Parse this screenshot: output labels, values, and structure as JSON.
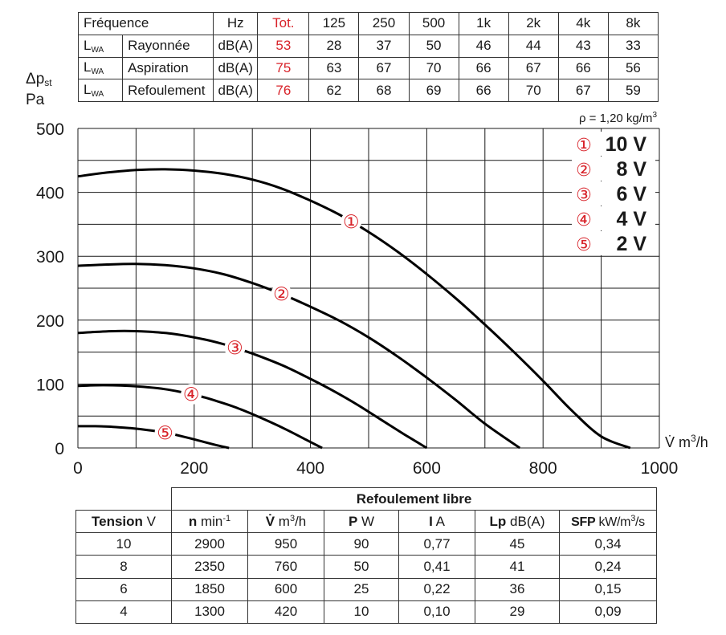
{
  "sound_table": {
    "header": {
      "freq": "Fréquence",
      "unit": "Hz",
      "tot": "Tot.",
      "bands": [
        "125",
        "250",
        "500",
        "1k",
        "2k",
        "4k",
        "8k"
      ]
    },
    "rows": [
      {
        "l": "L",
        "sub": "WA",
        "name": "Rayonnée",
        "unit": "dB(A)",
        "tot": "53",
        "values": [
          "28",
          "37",
          "50",
          "46",
          "44",
          "43",
          "33"
        ]
      },
      {
        "l": "L",
        "sub": "WA",
        "name": "Aspiration",
        "unit": "dB(A)",
        "tot": "75",
        "values": [
          "63",
          "67",
          "70",
          "66",
          "67",
          "66",
          "56"
        ]
      },
      {
        "l": "L",
        "sub": "WA",
        "name": "Refoulement",
        "unit": "dB(A)",
        "tot": "76",
        "values": [
          "62",
          "68",
          "69",
          "66",
          "70",
          "67",
          "59"
        ]
      }
    ]
  },
  "y_axis_label": {
    "symbol": "Δp",
    "sub": "st",
    "unit": "Pa"
  },
  "density_note": {
    "text": "ρ = 1,20 kg/m",
    "sup": "3"
  },
  "x_axis_unit": {
    "text": "V̇ m",
    "sup": "3",
    "suffix": "/h"
  },
  "colors": {
    "curve": "#000000",
    "label_red": "#d8232a",
    "grid": "#1a1a1a"
  },
  "chart_data": {
    "type": "line",
    "xlabel": "V̇ m³/h",
    "ylabel": "Δpst Pa",
    "xlim": [
      0,
      1000
    ],
    "ylim": [
      0,
      500
    ],
    "x_ticks": [
      0,
      200,
      400,
      600,
      800,
      1000
    ],
    "y_ticks": [
      0,
      100,
      200,
      300,
      400,
      500
    ],
    "x_grid_step": 100,
    "y_grid_step": 50,
    "grid": true,
    "legend_position": "top-right",
    "series": [
      {
        "marker": "①",
        "name": "10 V",
        "label_x": 470,
        "x": [
          0,
          50,
          100,
          150,
          200,
          250,
          300,
          350,
          400,
          450,
          500,
          550,
          600,
          650,
          700,
          750,
          800,
          850,
          900,
          950
        ],
        "y": [
          425,
          431,
          435,
          436,
          434,
          429,
          420,
          406,
          387,
          365,
          338,
          307,
          272,
          234,
          193,
          150,
          105,
          58,
          18,
          0
        ]
      },
      {
        "marker": "②",
        "name": "8 V",
        "label_x": 350,
        "x": [
          0,
          50,
          100,
          150,
          200,
          250,
          300,
          350,
          400,
          450,
          500,
          550,
          600,
          650,
          700,
          760
        ],
        "y": [
          285,
          287,
          288,
          286,
          281,
          272,
          258,
          241,
          221,
          199,
          173,
          143,
          110,
          75,
          38,
          0
        ]
      },
      {
        "marker": "③",
        "name": "6 V",
        "label_x": 270,
        "x": [
          0,
          40,
          80,
          120,
          160,
          200,
          240,
          280,
          320,
          360,
          400,
          440,
          480,
          520,
          560,
          600
        ],
        "y": [
          180,
          182,
          183,
          182,
          179,
          173,
          165,
          154,
          141,
          126,
          108,
          89,
          68,
          45,
          22,
          0
        ]
      },
      {
        "marker": "④",
        "name": "4 V",
        "label_x": 195,
        "x": [
          0,
          30,
          60,
          90,
          120,
          150,
          180,
          210,
          240,
          270,
          300,
          330,
          360,
          390,
          420
        ],
        "y": [
          97,
          98,
          98,
          97,
          95,
          92,
          87,
          81,
          73,
          64,
          53,
          41,
          28,
          14,
          0
        ]
      },
      {
        "marker": "⑤",
        "name": "2 V",
        "label_x": 150,
        "x": [
          0,
          30,
          60,
          90,
          120,
          150,
          180,
          210,
          240,
          260
        ],
        "y": [
          34,
          34,
          33,
          31,
          28,
          24,
          18,
          11,
          4,
          0
        ]
      }
    ]
  },
  "perf_table": {
    "title": "Refoulement libre",
    "headers": [
      {
        "bold": "Tension",
        "rest": " V"
      },
      {
        "bold": "n",
        "rest": " min",
        "sup": "-1"
      },
      {
        "bold": "V̇",
        "rest": " m",
        "sup": "3",
        "after": "/h"
      },
      {
        "bold": "P",
        "rest": " W"
      },
      {
        "bold": "I",
        "rest": " A"
      },
      {
        "bold": "Lp",
        "rest": " dB(A)"
      },
      {
        "bold": "SFP",
        "rest": " kW/m",
        "sup": "3",
        "after": "/s"
      }
    ],
    "rows": [
      [
        "10",
        "2900",
        "950",
        "90",
        "0,77",
        "45",
        "0,34"
      ],
      [
        "8",
        "2350",
        "760",
        "50",
        "0,41",
        "41",
        "0,24"
      ],
      [
        "6",
        "1850",
        "600",
        "25",
        "0,22",
        "36",
        "0,15"
      ],
      [
        "4",
        "1300",
        "420",
        "10",
        "0,10",
        "29",
        "0,09"
      ]
    ]
  }
}
